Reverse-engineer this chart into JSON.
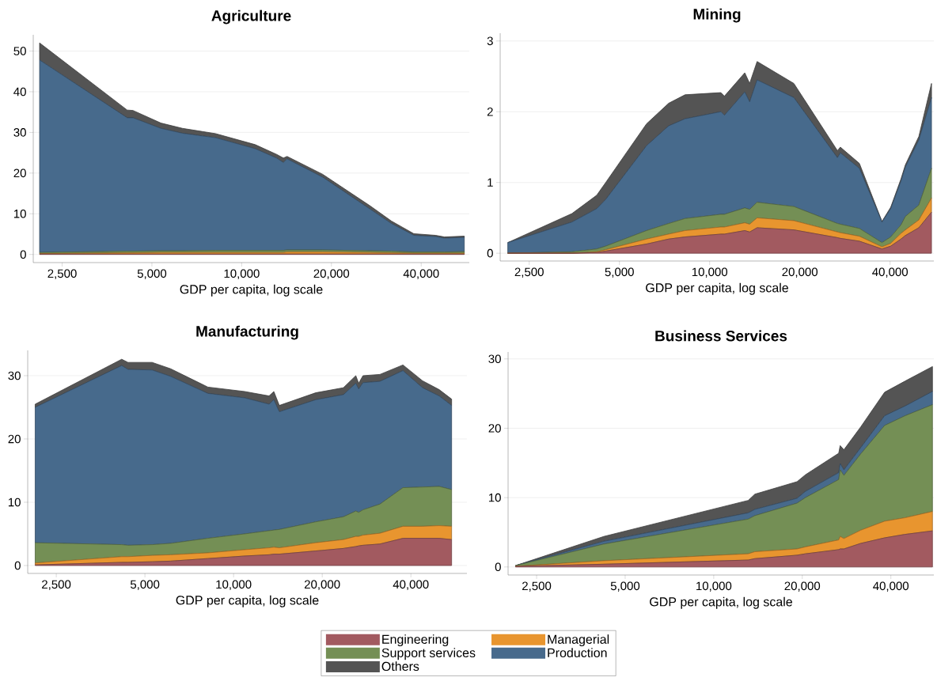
{
  "chart_data": [
    {
      "type": "area",
      "stacked": true,
      "title": "Agriculture",
      "xlabel": "GDP per capita, log scale",
      "log": "x",
      "grid": "y",
      "xlim": [
        2000,
        58000
      ],
      "ylim": [
        -2,
        54
      ],
      "xticks": [
        {
          "value": 2500,
          "label": "2,500"
        },
        {
          "value": 5000,
          "label": "5,000"
        },
        {
          "value": 10000,
          "label": "10,000"
        },
        {
          "value": 20000,
          "label": "20,000"
        },
        {
          "value": 40000,
          "label": "40,000"
        }
      ],
      "yticks": [
        0,
        10,
        20,
        30,
        40,
        50
      ],
      "x": [
        2100,
        4130,
        4320,
        5360,
        6330,
        8180,
        11100,
        13100,
        13800,
        14200,
        18700,
        26900,
        31800,
        37800,
        44700,
        47900,
        55800
      ],
      "series": [
        {
          "color": "#a25a60",
          "values": [
            0.1,
            0.1,
            0.1,
            0.1,
            0.1,
            0.1,
            0.1,
            0.1,
            0.1,
            0.1,
            0.1,
            0.1,
            0.1,
            0.1,
            0.1,
            0.1,
            0.1
          ]
        },
        {
          "color": "#e8952f",
          "values": [
            0.1,
            0.3,
            0.3,
            0.4,
            0.4,
            0.4,
            0.4,
            0.4,
            0.4,
            0.5,
            0.5,
            0.4,
            0.3,
            0.2,
            0.2,
            0.2,
            0.2
          ]
        },
        {
          "color": "#748f55",
          "values": [
            0.3,
            0.4,
            0.4,
            0.4,
            0.4,
            0.5,
            0.5,
            0.5,
            0.5,
            0.5,
            0.5,
            0.4,
            0.4,
            0.3,
            0.3,
            0.3,
            0.4
          ]
        },
        {
          "color": "#476a8c",
          "values": [
            47.3,
            32.8,
            32.8,
            30.1,
            28.9,
            27.7,
            25.0,
            22.7,
            21.6,
            22.4,
            17.9,
            10.3,
            6.8,
            4.1,
            3.8,
            3.4,
            3.5
          ]
        },
        {
          "color": "#545454",
          "values": [
            4.2,
            1.9,
            1.8,
            1.3,
            1.2,
            1.0,
            1.0,
            0.9,
            1.1,
            0.6,
            0.7,
            0.8,
            0.6,
            0.4,
            0.3,
            0.3,
            0.3
          ]
        }
      ]
    },
    {
      "type": "area",
      "stacked": true,
      "title": "Mining",
      "xlabel": "GDP per capita, log scale",
      "log": "x",
      "grid": "y",
      "xlim": [
        2000,
        56000
      ],
      "ylim": [
        -0.11,
        3.11
      ],
      "xticks": [
        {
          "value": 2500,
          "label": "2,500"
        },
        {
          "value": 5000,
          "label": "5,000"
        },
        {
          "value": 10000,
          "label": "10,000"
        },
        {
          "value": 20000,
          "label": "20,000"
        },
        {
          "value": 40000,
          "label": "40,000"
        }
      ],
      "yticks": [
        0,
        1,
        2,
        3
      ],
      "x": [
        2120,
        3470,
        4200,
        4500,
        6160,
        7300,
        8280,
        10900,
        11200,
        13100,
        13600,
        14400,
        19100,
        26700,
        27300,
        31600,
        37600,
        40200,
        43500,
        45000,
        49900,
        55000
      ],
      "series": [
        {
          "color": "#a25a60",
          "values": [
            0,
            0,
            0.01,
            0.03,
            0.13,
            0.2,
            0.23,
            0.27,
            0.27,
            0.32,
            0.3,
            0.36,
            0.33,
            0.22,
            0.21,
            0.17,
            0.06,
            0.1,
            0.2,
            0.25,
            0.36,
            0.58
          ]
        },
        {
          "color": "#e8952f",
          "values": [
            0,
            0,
            0.01,
            0.02,
            0.07,
            0.07,
            0.09,
            0.1,
            0.1,
            0.11,
            0.11,
            0.14,
            0.13,
            0.08,
            0.08,
            0.07,
            0.03,
            0.04,
            0.08,
            0.08,
            0.11,
            0.2
          ]
        },
        {
          "color": "#748f55",
          "values": [
            0,
            0.02,
            0.04,
            0.05,
            0.12,
            0.15,
            0.17,
            0.18,
            0.18,
            0.21,
            0.21,
            0.22,
            0.2,
            0.12,
            0.12,
            0.11,
            0.06,
            0.09,
            0.12,
            0.19,
            0.21,
            0.42
          ]
        },
        {
          "color": "#476a8c",
          "values": [
            0.15,
            0.42,
            0.57,
            0.66,
            1.2,
            1.38,
            1.41,
            1.45,
            1.4,
            1.64,
            1.52,
            1.73,
            1.54,
            0.93,
            1.01,
            0.85,
            0.29,
            0.4,
            0.62,
            0.7,
            0.92,
            1.0
          ]
        },
        {
          "color": "#545454",
          "values": [
            0,
            0.12,
            0.19,
            0.24,
            0.31,
            0.32,
            0.34,
            0.27,
            0.27,
            0.27,
            0.26,
            0.26,
            0.2,
            0.1,
            0.08,
            0.07,
            0.01,
            0.02,
            0.03,
            0.03,
            0.05,
            0.2
          ]
        }
      ]
    },
    {
      "type": "area",
      "stacked": true,
      "title": "Manufacturing",
      "xlabel": "GDP per capita, log scale",
      "log": "x",
      "grid": "y",
      "xlim": [
        2000,
        62000
      ],
      "ylim": [
        -1.25,
        34
      ],
      "xticks": [
        {
          "value": 2500,
          "label": "2,500"
        },
        {
          "value": 5000,
          "label": "5,000"
        },
        {
          "value": 10000,
          "label": "10,000"
        },
        {
          "value": 20000,
          "label": "20,000"
        },
        {
          "value": 40000,
          "label": "40,000"
        }
      ],
      "yticks": [
        0,
        10,
        20,
        30
      ],
      "x": [
        2120,
        4170,
        4380,
        5290,
        6110,
        8180,
        10900,
        13200,
        13700,
        14300,
        19000,
        23600,
        26000,
        26600,
        27500,
        31400,
        37600,
        43800,
        49900,
        55000
      ],
      "series": [
        {
          "color": "#a25a60",
          "values": [
            0.1,
            0.5,
            0.5,
            0.6,
            0.7,
            1.1,
            1.5,
            1.7,
            1.8,
            1.8,
            2.3,
            2.7,
            3.0,
            3.1,
            3.2,
            3.4,
            4.3,
            4.3,
            4.3,
            4.1
          ]
        },
        {
          "color": "#e8952f",
          "values": [
            0.3,
            0.9,
            0.9,
            1.0,
            1.0,
            0.9,
            1.0,
            1.1,
            1.1,
            1.0,
            1.3,
            1.4,
            1.6,
            1.5,
            1.6,
            1.7,
            1.9,
            1.9,
            2.0,
            2.1
          ]
        },
        {
          "color": "#748f55",
          "values": [
            3.2,
            1.9,
            1.8,
            1.7,
            1.8,
            2.3,
            2.5,
            2.7,
            2.7,
            2.9,
            3.3,
            3.6,
            4.0,
            3.8,
            4.0,
            4.6,
            6.1,
            6.2,
            6.2,
            5.8
          ]
        },
        {
          "color": "#476a8c",
          "values": [
            21.4,
            28.3,
            27.8,
            27.6,
            26.4,
            22.9,
            21.5,
            20.0,
            20.6,
            18.6,
            19.3,
            19.3,
            20.2,
            19.5,
            20.1,
            19.4,
            18.5,
            15.7,
            14.3,
            13.3
          ]
        },
        {
          "color": "#545454",
          "values": [
            0.5,
            1.0,
            1.1,
            1.2,
            1.2,
            1.0,
            1.0,
            1.3,
            1.3,
            1.0,
            1.1,
            1.1,
            1.2,
            0.9,
            1.1,
            1.1,
            0.9,
            1.1,
            1.0,
            1.0
          ]
        }
      ]
    },
    {
      "type": "area",
      "stacked": true,
      "title": "Business Services",
      "xlabel": "GDP per capita, log scale",
      "log": "x",
      "grid": "y",
      "legend": "bottom",
      "xlim": [
        2000,
        56000
      ],
      "ylim": [
        -1.16,
        31
      ],
      "xticks": [
        {
          "value": 2500,
          "label": "2,500"
        },
        {
          "value": 5000,
          "label": "5,000"
        },
        {
          "value": 10000,
          "label": "10,000"
        },
        {
          "value": 20000,
          "label": "20,000"
        },
        {
          "value": 40000,
          "label": "40,000"
        }
      ],
      "yticks": [
        0,
        10,
        20,
        30
      ],
      "x": [
        2120,
        4230,
        13100,
        13800,
        19200,
        20500,
        26600,
        26900,
        27700,
        31600,
        38100,
        44700,
        55400
      ],
      "series": [
        {
          "name": "Engineering",
          "color": "#a25a60",
          "values": [
            0.1,
            0.4,
            1.0,
            1.2,
            1.7,
            1.9,
            2.5,
            2.6,
            2.6,
            3.4,
            4.2,
            4.7,
            5.2
          ]
        },
        {
          "name": "Managerial",
          "color": "#e8952f",
          "values": [
            0,
            0.5,
            0.9,
            1.0,
            0.9,
            1.0,
            1.4,
            1.8,
            1.5,
            1.9,
            2.4,
            2.4,
            2.8
          ]
        },
        {
          "name": "Support services",
          "color": "#748f55",
          "values": [
            0.1,
            2.4,
            5.0,
            5.2,
            6.6,
            7.1,
            8.7,
            9.6,
            9.1,
            11.0,
            13.8,
            14.7,
            15.4
          ]
        },
        {
          "name": "Production",
          "color": "#476a8c",
          "values": [
            0,
            0.4,
            0.9,
            0.9,
            0.7,
            0.9,
            1.0,
            0.9,
            0.8,
            0.9,
            1.4,
            1.4,
            1.9
          ]
        },
        {
          "name": "Others",
          "color": "#545454",
          "values": [
            0,
            0.7,
            1.8,
            2.2,
            2.4,
            2.4,
            2.8,
            2.6,
            2.9,
            3.0,
            3.4,
            3.6,
            3.6
          ]
        }
      ]
    }
  ]
}
